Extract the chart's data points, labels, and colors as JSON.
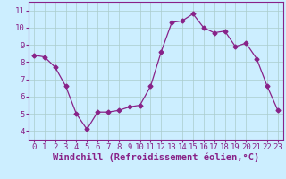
{
  "x": [
    0,
    1,
    2,
    3,
    4,
    5,
    6,
    7,
    8,
    9,
    10,
    11,
    12,
    13,
    14,
    15,
    16,
    17,
    18,
    19,
    20,
    21,
    22,
    23
  ],
  "y": [
    8.4,
    8.3,
    7.7,
    6.6,
    5.0,
    4.1,
    5.1,
    5.1,
    5.2,
    5.4,
    5.5,
    6.6,
    8.6,
    10.3,
    10.4,
    10.8,
    10.0,
    9.7,
    9.8,
    8.9,
    9.1,
    8.2,
    6.6,
    5.2
  ],
  "line_color": "#882288",
  "marker": "D",
  "marker_size": 2.5,
  "bg_color": "#cceeff",
  "grid_color": "#aacccc",
  "xlabel": "Windchill (Refroidissement éolien,°C)",
  "xlim": [
    -0.5,
    23.5
  ],
  "ylim": [
    3.5,
    11.5
  ],
  "yticks": [
    4,
    5,
    6,
    7,
    8,
    9,
    10,
    11
  ],
  "xticks": [
    0,
    1,
    2,
    3,
    4,
    5,
    6,
    7,
    8,
    9,
    10,
    11,
    12,
    13,
    14,
    15,
    16,
    17,
    18,
    19,
    20,
    21,
    22,
    23
  ],
  "tick_label_fontsize": 6.5,
  "xlabel_fontsize": 7.5,
  "xlabel_fontweight": "bold"
}
